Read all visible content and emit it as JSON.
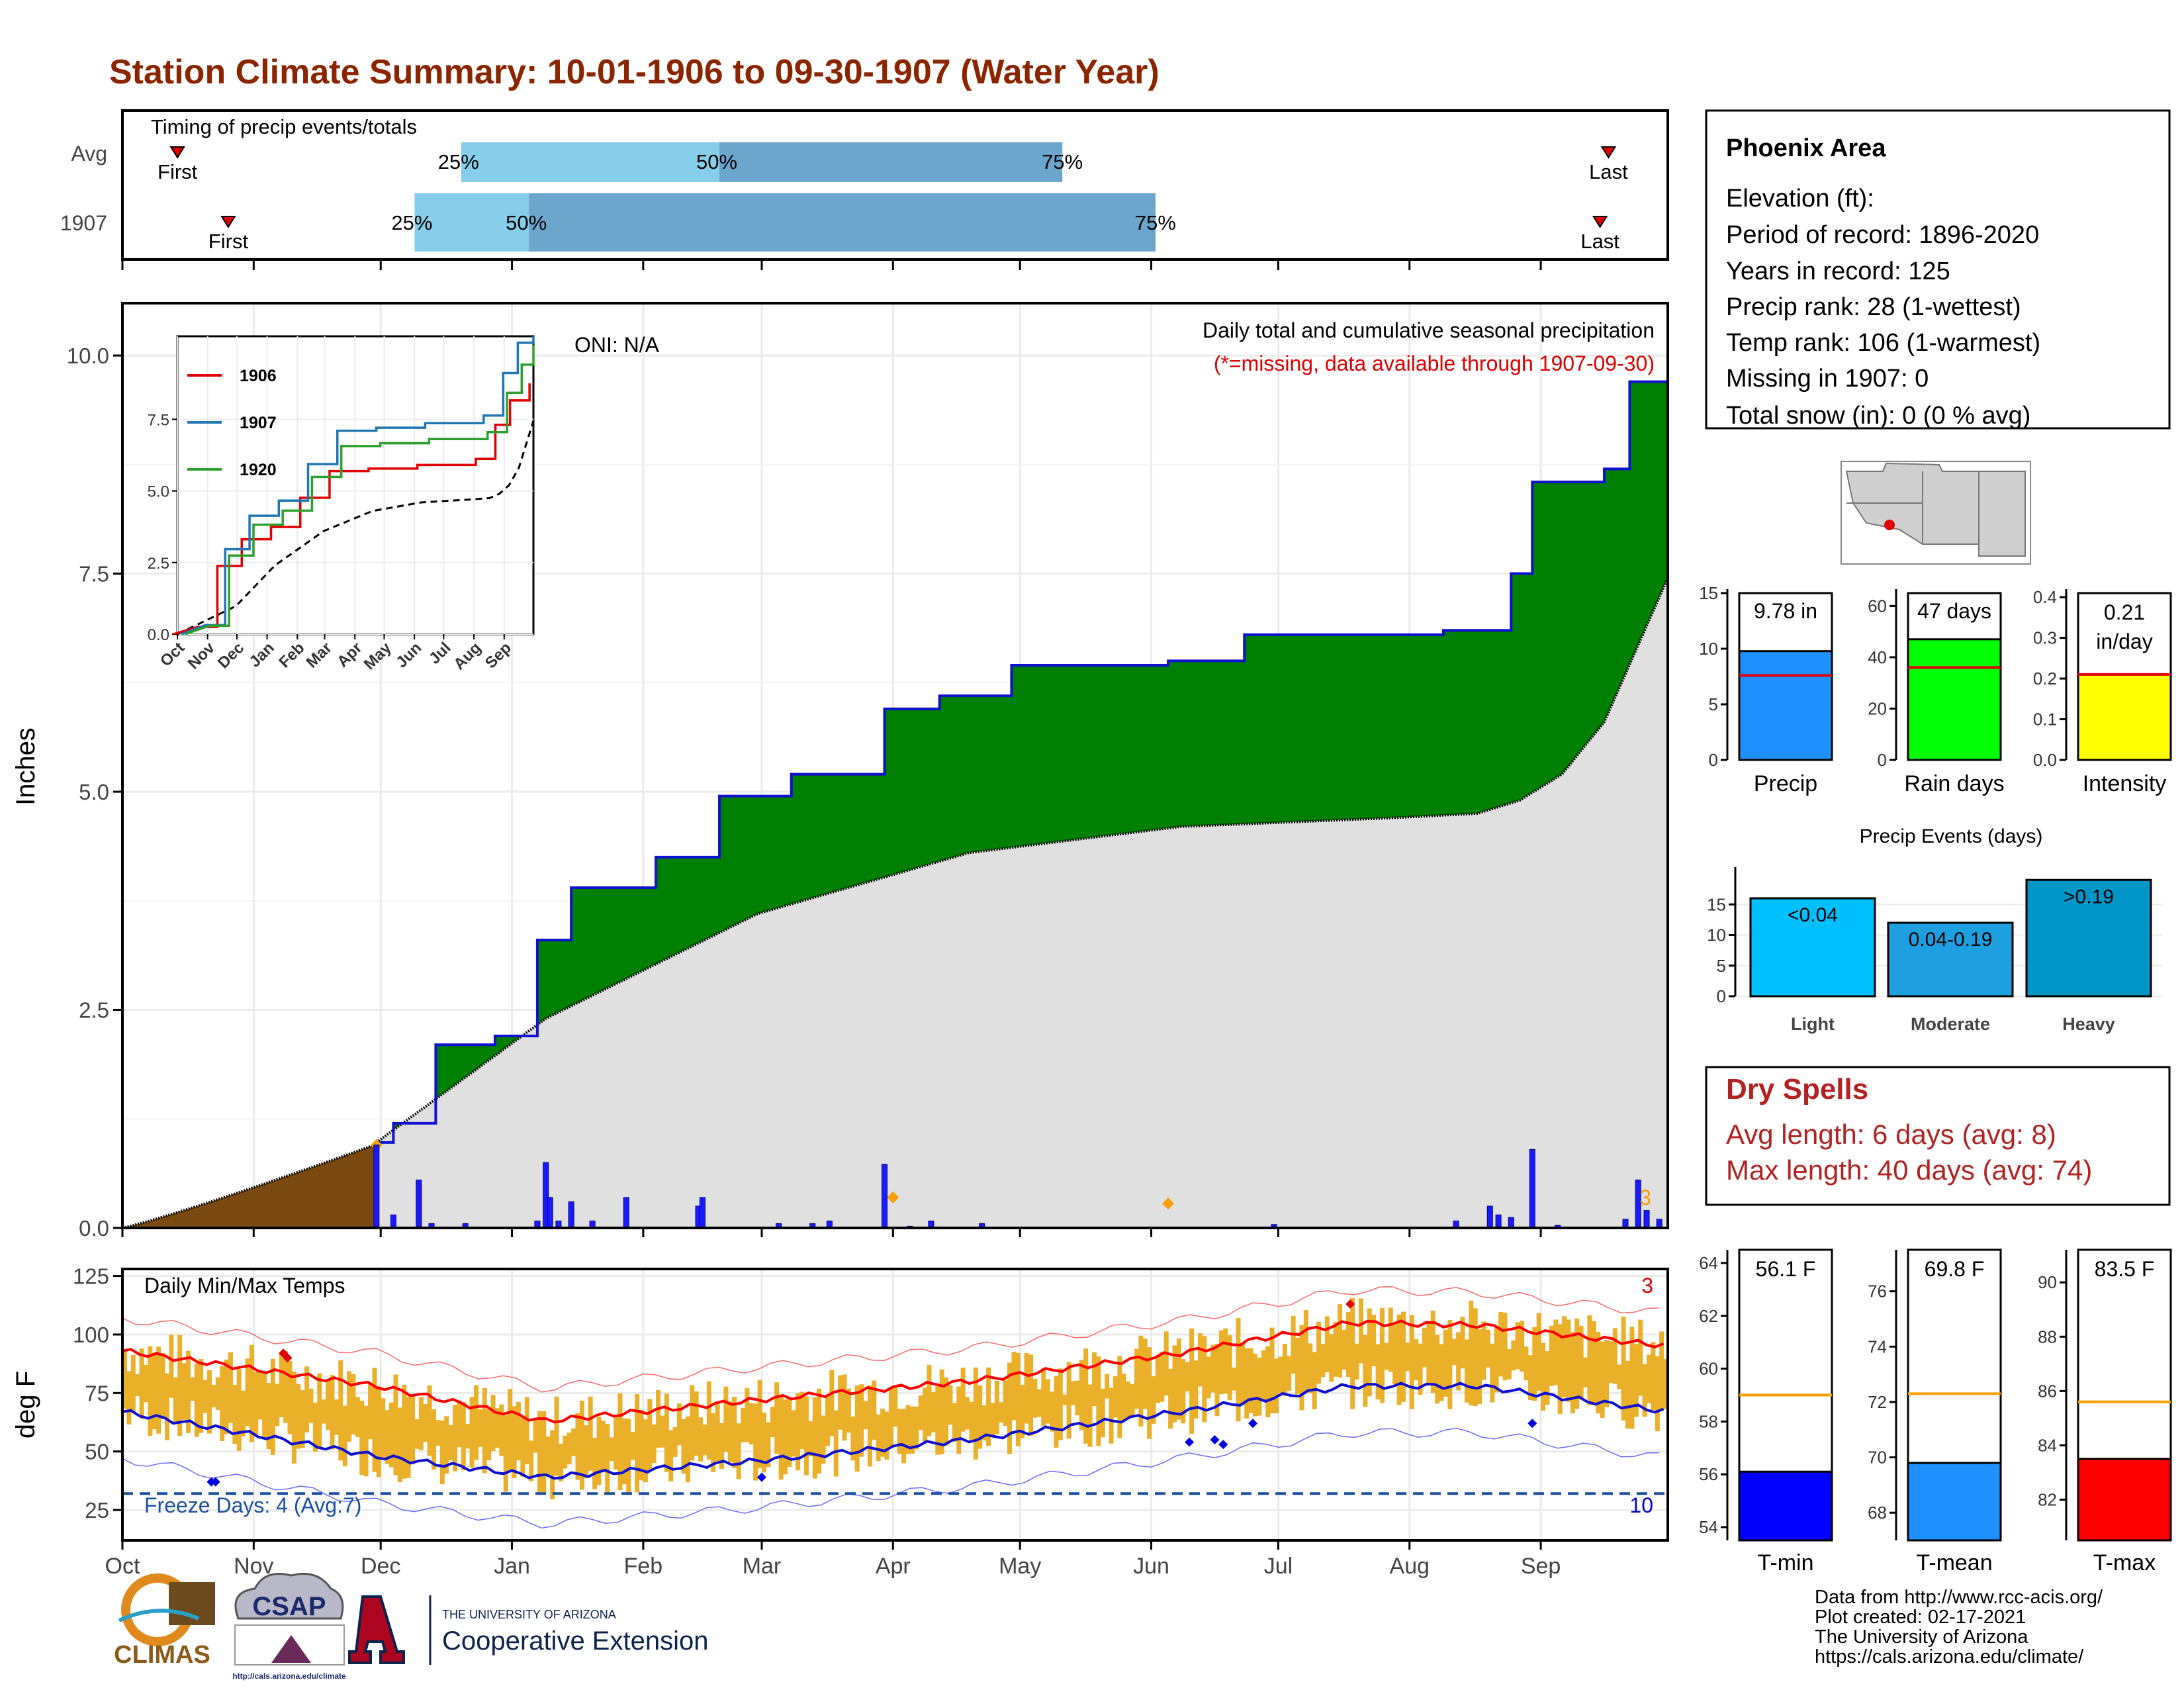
{
  "title": "Station Climate Summary: 10-01-1906 to 09-30-1907 (Water Year)",
  "colors": {
    "title": "#8B2500",
    "precip_surplus": "#008000",
    "precip_line": "#1010d0",
    "climo_fill": "#e0e0e0",
    "pre_season": "#7a4a10",
    "daily_bar": "#1a1aff",
    "temp_bar": "#eab02a",
    "max_line": "#ff0000",
    "min_line": "#1010d0",
    "missing_marker": "#f5a000",
    "dark_blue": "#1a4fa0"
  },
  "timing": {
    "label": "Timing of precip events/totals",
    "rows": [
      {
        "name": "Avg",
        "first_day": 13,
        "last_day": 351,
        "p25": 80,
        "p50": 141,
        "p75": 222
      },
      {
        "name": "1907",
        "first_day": 25,
        "last_day": 349,
        "p25": 69,
        "p50": 96,
        "p75": 244
      }
    ],
    "first_label": "First",
    "last_label": "Last",
    "pct_labels": [
      "25%",
      "50%",
      "75%"
    ]
  },
  "precip_panel": {
    "ylabel": "Inches",
    "oni": "ONI: N/A",
    "heading": "Daily total and cumulative seasonal precipitation",
    "note": "(*=missing, data available through 1907-09-30)",
    "missing_count": "3",
    "y_ticks": [
      "0.0",
      "2.5",
      "5.0",
      "7.5",
      "10.0"
    ],
    "ylim": [
      0,
      10.6
    ]
  },
  "inset": {
    "legend": [
      "1906",
      "1907",
      "1920"
    ],
    "y_ticks": [
      "0.0",
      "2.5",
      "5.0",
      "7.5"
    ],
    "x_ticks": [
      "Oct",
      "Nov",
      "Dec",
      "Jan",
      "Feb",
      "Mar",
      "Apr",
      "May",
      "Jun",
      "Jul",
      "Aug",
      "Sep"
    ]
  },
  "temp_panel": {
    "ylabel": "deg F",
    "label": "Daily Min/Max Temps",
    "freeze": "Freeze Days: 4 (Avg:7)",
    "count_top": "3",
    "count_bottom": "10",
    "y_ticks": [
      "25",
      "50",
      "75",
      "100",
      "125"
    ]
  },
  "months": [
    "Oct",
    "Nov",
    "Dec",
    "Jan",
    "Feb",
    "Mar",
    "Apr",
    "May",
    "Jun",
    "Jul",
    "Aug",
    "Sep"
  ],
  "station": {
    "name": "Phoenix Area",
    "lines": [
      "Elevation (ft):",
      "Period of record: 1896-2020",
      "Years in record: 125",
      "Precip rank: 28 (1-wettest)",
      "Temp rank: 106 (1-warmest)",
      "Missing in 1907: 0",
      "Total snow (in): 0 (0 % avg)"
    ]
  },
  "summary_bars": [
    {
      "name": "Precip",
      "value": 9.78,
      "avg": 7.6,
      "label": "9.78 in",
      "ticks": [
        "0",
        "5",
        "10",
        "15"
      ],
      "max": 15,
      "color": "#1e90ff"
    },
    {
      "name": "Rain days",
      "value": 47,
      "avg": 36,
      "label": "47 days",
      "ticks": [
        "0",
        "20",
        "40",
        "60"
      ],
      "max": 65,
      "color": "#00ff00"
    },
    {
      "name": "Intensity",
      "value": 0.21,
      "avg": 0.21,
      "label": "0.21 in/day",
      "ticks": [
        "0.0",
        "0.1",
        "0.2",
        "0.3",
        "0.4"
      ],
      "max": 0.41,
      "color": "#ffff00"
    }
  ],
  "events": {
    "title": "Precip Events (days)",
    "ticks": [
      "0",
      "5",
      "10",
      "15"
    ],
    "bars": [
      {
        "name": "Light",
        "value": 16,
        "label": "<0.04",
        "color": "#00bfff"
      },
      {
        "name": "Moderate",
        "value": 12,
        "label": "0.04-0.19",
        "color": "#1ea0e0"
      },
      {
        "name": "Heavy",
        "value": 19,
        "label": ">0.19",
        "color": "#0096c8"
      }
    ]
  },
  "dry_spells": {
    "title": "Dry Spells",
    "avg": "Avg length: 6 days (avg: 8)",
    "max": "Max length: 40 days (avg: 74)"
  },
  "temp_bars": [
    {
      "name": "T-min",
      "value": 56.1,
      "avg": 59.0,
      "label": "56.1 F",
      "ticks": [
        "54",
        "56",
        "58",
        "60",
        "62",
        "64"
      ],
      "range": [
        53.5,
        64.5
      ],
      "color": "#0000ff"
    },
    {
      "name": "T-mean",
      "value": 69.8,
      "avg": 72.3,
      "label": "69.8 F",
      "ticks": [
        "68",
        "70",
        "72",
        "74",
        "76"
      ],
      "range": [
        67,
        77.5
      ],
      "color": "#1e90ff"
    },
    {
      "name": "T-max",
      "value": 83.5,
      "avg": 85.6,
      "label": "83.5 F",
      "ticks": [
        "82",
        "84",
        "86",
        "88",
        "90"
      ],
      "range": [
        80.5,
        91.2
      ],
      "color": "#ff0000"
    }
  ],
  "credits": [
    "Data from http://www.rcc-acis.org/",
    "Plot created: 02-17-2021",
    "The University of Arizona",
    "https://cals.arizona.edu/climate/"
  ],
  "logos": {
    "climas": "CLIMAS",
    "csap": "CSAP",
    "csap_url": "http://cals.arizona.edu/climate",
    "ua_top": "THE UNIVERSITY OF ARIZONA",
    "ua_bottom": "Cooperative Extension"
  },
  "chart_data": {
    "type": "area",
    "cumulative_precip_1907": [
      [
        0,
        0
      ],
      [
        60,
        0.98
      ],
      [
        64,
        1.2
      ],
      [
        74,
        2.1
      ],
      [
        88,
        2.2
      ],
      [
        98,
        3.3
      ],
      [
        106,
        3.9
      ],
      [
        126,
        4.25
      ],
      [
        141,
        4.95
      ],
      [
        158,
        5.2
      ],
      [
        180,
        5.95
      ],
      [
        193,
        6.1
      ],
      [
        210,
        6.45
      ],
      [
        247,
        6.5
      ],
      [
        265,
        6.8
      ],
      [
        312,
        6.85
      ],
      [
        328,
        7.5
      ],
      [
        333,
        8.55
      ],
      [
        350,
        8.7
      ],
      [
        356,
        9.7
      ],
      [
        365,
        9.78
      ]
    ],
    "cumulative_precip_avg": [
      [
        0,
        0
      ],
      [
        60,
        0.98
      ],
      [
        100,
        2.4
      ],
      [
        150,
        3.6
      ],
      [
        200,
        4.3
      ],
      [
        250,
        4.6
      ],
      [
        300,
        4.7
      ],
      [
        320,
        4.75
      ],
      [
        330,
        4.9
      ],
      [
        340,
        5.2
      ],
      [
        350,
        5.8
      ],
      [
        365,
        7.45
      ]
    ],
    "daily_precip_inches": [
      [
        60,
        0.95
      ],
      [
        64,
        0.15
      ],
      [
        70,
        0.55
      ],
      [
        73,
        0.05
      ],
      [
        81,
        0.05
      ],
      [
        98,
        0.08
      ],
      [
        100,
        0.75
      ],
      [
        101,
        0.35
      ],
      [
        103,
        0.08
      ],
      [
        106,
        0.3
      ],
      [
        111,
        0.08
      ],
      [
        119,
        0.35
      ],
      [
        136,
        0.25
      ],
      [
        137,
        0.35
      ],
      [
        155,
        0.05
      ],
      [
        163,
        0.05
      ],
      [
        167,
        0.08
      ],
      [
        180,
        0.73
      ],
      [
        186,
        0.02
      ],
      [
        191,
        0.08
      ],
      [
        203,
        0.05
      ],
      [
        272,
        0.04
      ],
      [
        315,
        0.08
      ],
      [
        323,
        0.25
      ],
      [
        325,
        0.15
      ],
      [
        328,
        0.12
      ],
      [
        333,
        0.9
      ],
      [
        339,
        0.03
      ],
      [
        355,
        0.1
      ],
      [
        358,
        0.55
      ],
      [
        360,
        0.2
      ],
      [
        363,
        0.1
      ]
    ],
    "tmax_smoothed_F": [
      [
        0,
        93
      ],
      [
        60,
        78
      ],
      [
        100,
        63
      ],
      [
        150,
        72
      ],
      [
        200,
        80
      ],
      [
        250,
        92
      ],
      [
        290,
        105
      ],
      [
        320,
        104
      ],
      [
        365,
        95
      ]
    ],
    "tmin_smoothed_F": [
      [
        0,
        67
      ],
      [
        60,
        48
      ],
      [
        100,
        39
      ],
      [
        150,
        46
      ],
      [
        200,
        55
      ],
      [
        250,
        67
      ],
      [
        290,
        78
      ],
      [
        320,
        78
      ],
      [
        365,
        67
      ]
    ]
  }
}
